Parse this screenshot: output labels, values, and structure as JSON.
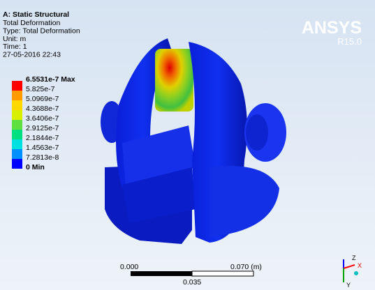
{
  "header": {
    "title": "A: Static Structural",
    "lines": [
      "Total Deformation",
      "Type: Total Deformation",
      "Unit: m",
      "Time: 1",
      "27-05-2016 22:43"
    ]
  },
  "legend": {
    "entries": [
      "6.5531e-7 Max",
      "5.825e-7",
      "5.0969e-7",
      "4.3688e-7",
      "3.6406e-7",
      "2.9125e-7",
      "2.1844e-7",
      "1.4563e-7",
      "7.2813e-8",
      "0 Min"
    ]
  },
  "logo": {
    "name": "ANSYS",
    "version": "R15.0"
  },
  "scale_bar": {
    "left": "0.000",
    "right": "0.070 (m)",
    "middle": "0.035"
  },
  "triad": {
    "z": "Z",
    "x": "X",
    "y": "Y"
  }
}
